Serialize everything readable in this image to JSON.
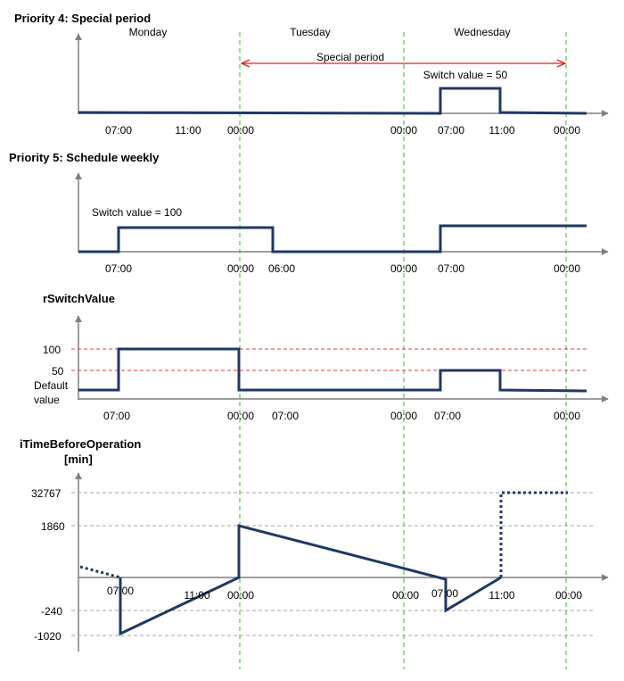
{
  "colors": {
    "signal": "#1f3864",
    "axis": "#7f7f7f",
    "period_arrow": "#e02020",
    "day_boundary": "#2eb82e",
    "reference_line": "#e04040",
    "guide_line": "#a6a6a6"
  },
  "days": {
    "monday": "Monday",
    "tuesday": "Tuesday",
    "wednesday": "Wednesday"
  },
  "priority4": {
    "title": "Priority 4: Special period",
    "special_period_label": "Special period",
    "switch_label": "Switch value = 50",
    "ticks": [
      "07:00",
      "11:00",
      "00:00",
      "00:00",
      "07:00",
      "11:00",
      "00:00"
    ]
  },
  "priority5": {
    "title": "Priority 5: Schedule weekly",
    "switch_label": "Switch value = 100",
    "ticks": [
      "07:00",
      "00:00",
      "06:00",
      "00:00",
      "07:00",
      "00:00"
    ]
  },
  "rswitch": {
    "title": "rSwitchValue",
    "y_labels": [
      "100",
      "50",
      "Default",
      "value"
    ],
    "ticks": [
      "07:00",
      "00:00",
      "07:00",
      "00:00",
      "07:00",
      "00:00"
    ]
  },
  "itime": {
    "title": "iTimeBeforeOperation",
    "unit": "[min]",
    "y_labels": [
      "32767",
      "1860",
      "-240",
      "-1020"
    ],
    "ticks": [
      "07:00",
      "11:00",
      "00:00",
      "00:00",
      "07:00",
      "11:00",
      "00:00"
    ]
  }
}
